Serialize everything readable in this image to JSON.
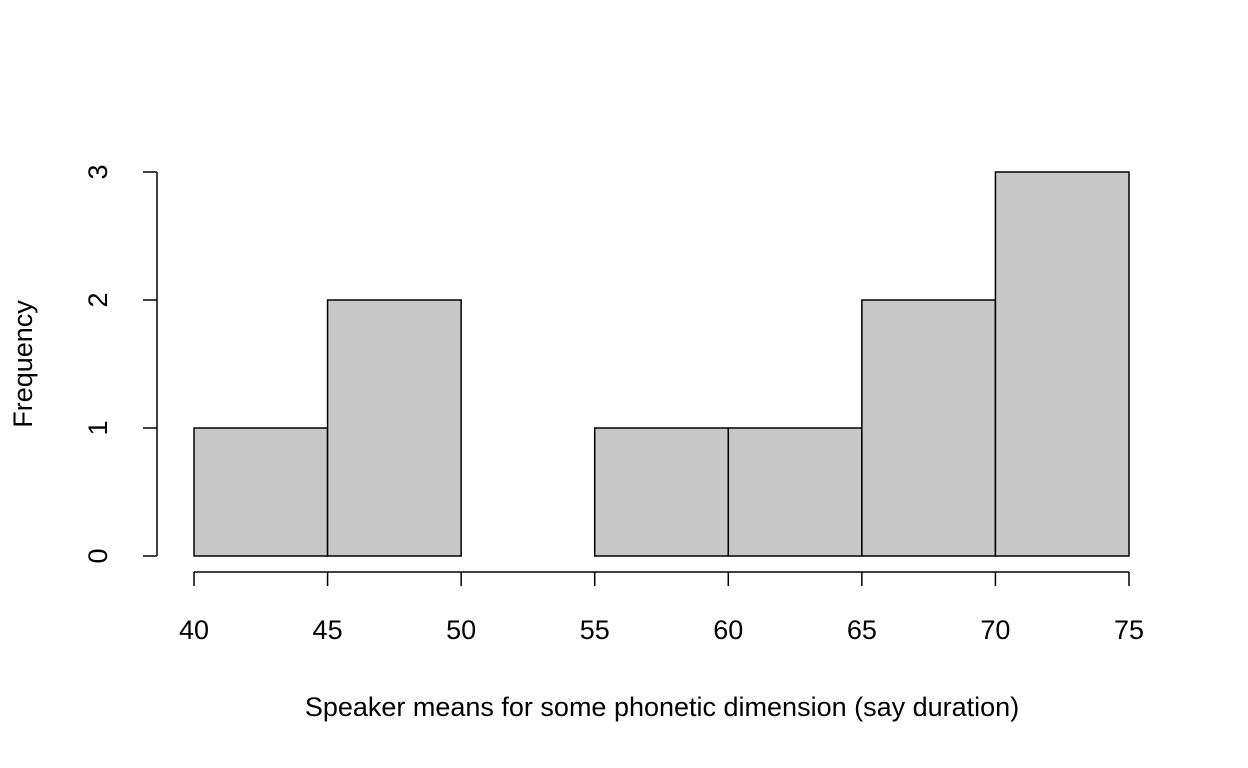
{
  "chart_data": {
    "type": "histogram",
    "x_label": "Speaker means for some phonetic dimension (say duration)",
    "y_label": "Frequency",
    "bins": [
      40,
      45,
      50,
      55,
      60,
      65,
      70,
      75
    ],
    "counts": [
      1,
      2,
      0,
      1,
      1,
      2,
      3
    ],
    "color": "#c8c8c8",
    "xlim": [
      40,
      75
    ],
    "xticks": [
      40,
      45,
      50,
      55,
      60,
      65,
      70,
      75
    ],
    "ylim": [
      0,
      3
    ],
    "yticks": [
      0,
      1,
      2,
      3
    ]
  }
}
